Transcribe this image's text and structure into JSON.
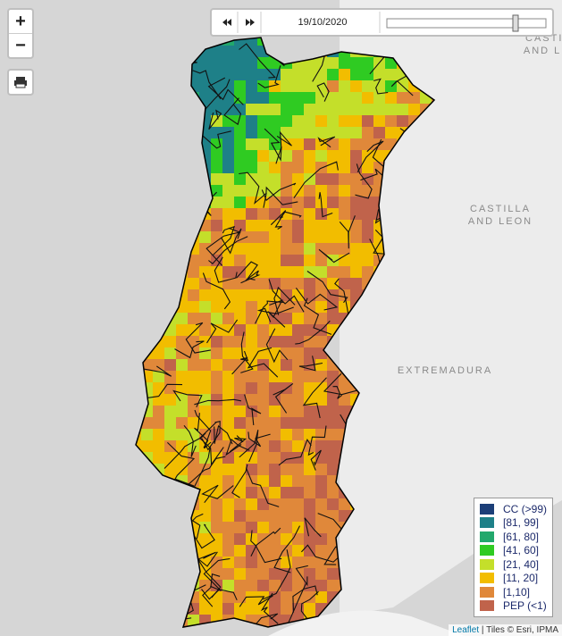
{
  "controls": {
    "zoom_in": "+",
    "zoom_out": "−"
  },
  "timeline": {
    "date": "19/10/2020"
  },
  "map_labels": {
    "region_1": [
      "CASTILLA",
      "AND LEON"
    ],
    "region_2": "EXTREMADURA"
  },
  "legend": {
    "items": [
      {
        "label": "CC (>99)",
        "color": "#1c3f78"
      },
      {
        "label": "[81, 99]",
        "color": "#1e8088"
      },
      {
        "label": "[61, 80]",
        "color": "#22a86c"
      },
      {
        "label": "[41, 60]",
        "color": "#2fcb22"
      },
      {
        "label": "[21, 40]",
        "color": "#c4df2a"
      },
      {
        "label": "[11, 20]",
        "color": "#f2bd00"
      },
      {
        "label": "[1,10]",
        "color": "#e0883a"
      },
      {
        "label": "PEP (<1)",
        "color": "#c0634b"
      }
    ]
  },
  "attribution": {
    "link": "Leaflet",
    "text": "| Tiles © Esri, IPMA"
  }
}
